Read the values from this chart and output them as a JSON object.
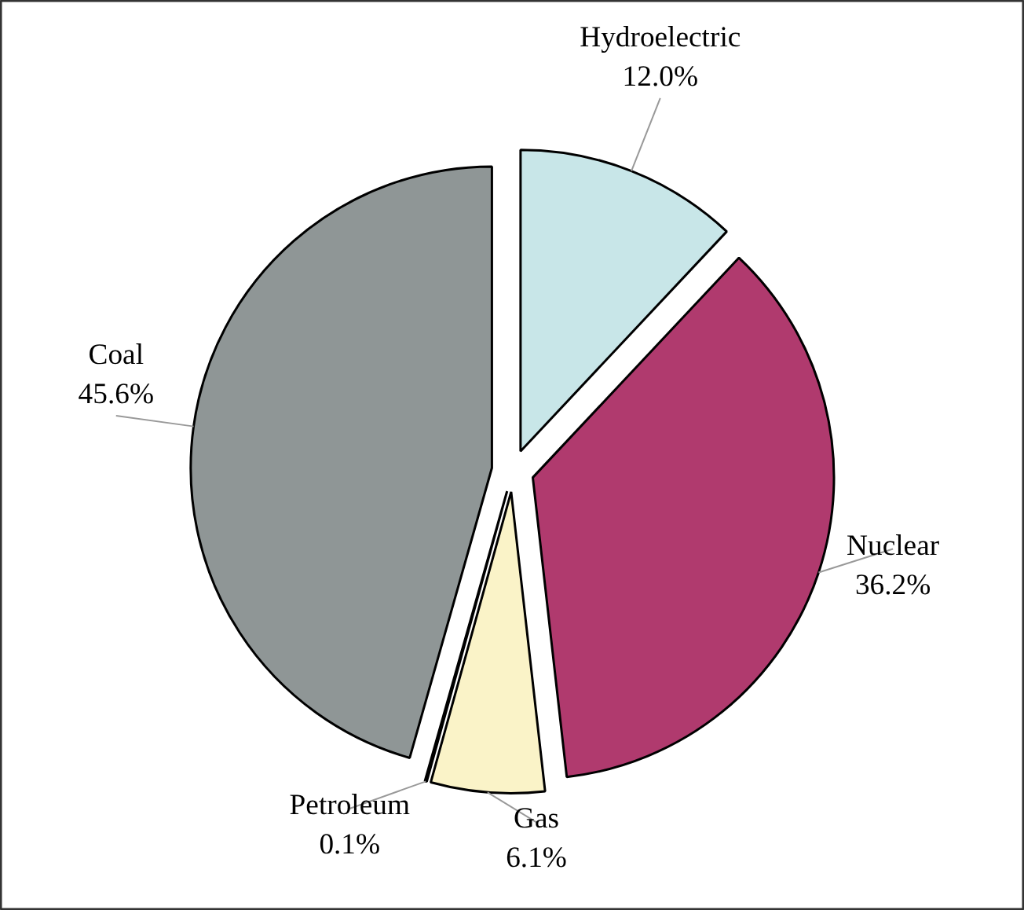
{
  "chart_data": {
    "type": "pie",
    "categories": [
      "Hydroelectric",
      "Nuclear",
      "Gas",
      "Petroleum",
      "Coal"
    ],
    "values": [
      12.0,
      36.2,
      6.1,
      0.1,
      45.6
    ],
    "value_labels": [
      "12.0%",
      "36.2%",
      "6.1%",
      "0.1%",
      "45.6%"
    ],
    "colors": [
      "#c8e6e8",
      "#b03a6e",
      "#faf3c8",
      "#eeeed8",
      "#8f9696"
    ]
  }
}
